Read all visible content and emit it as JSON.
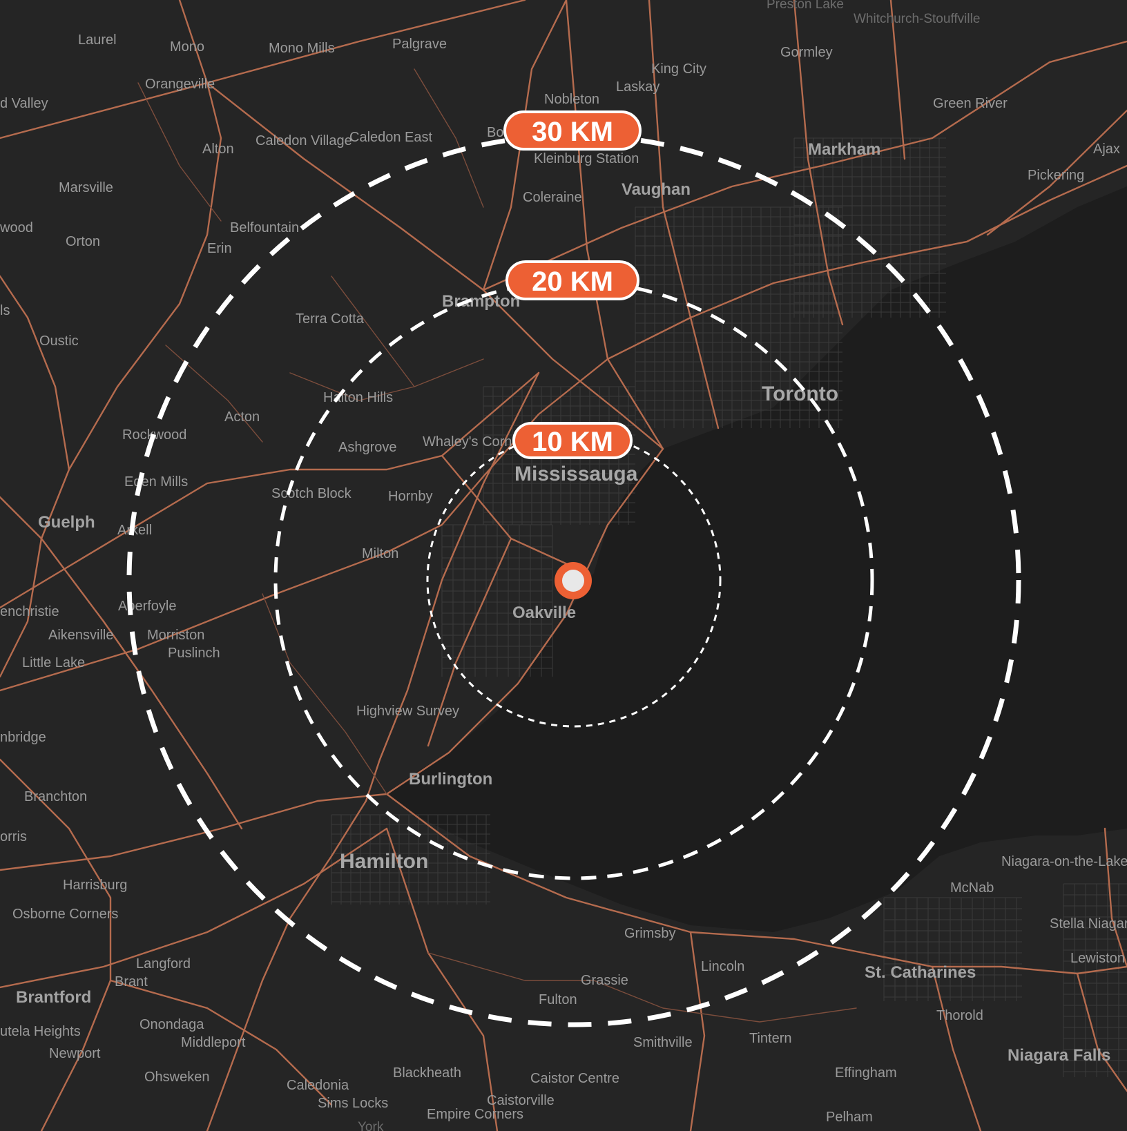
{
  "colors": {
    "background": "#252525",
    "water": "#1d1d1d",
    "road": "#b56b4e",
    "accent": "#ed6034",
    "ring": "#ffffff"
  },
  "center_marker": {
    "icon": "location-pin-icon",
    "label": "Oakville"
  },
  "radius_rings": [
    {
      "label": "10 KM",
      "radius_km": 10
    },
    {
      "label": "20 KM",
      "radius_km": 20
    },
    {
      "label": "30 KM",
      "radius_km": 30
    }
  ],
  "places": {
    "laurel": "Laurel",
    "mono": "Mono",
    "mono_mills": "Mono Mills",
    "palgrave": "Palgrave",
    "orangeville": "Orangeville",
    "grand_valley": "d Valley",
    "nobleton": "Nobleton",
    "king_city": "King City",
    "laskay": "Laskay",
    "gormley": "Gormley",
    "whitchurch": "Whitchurch-Stouffville",
    "preston_lake": "Preston Lake",
    "green_river": "Green River",
    "markham": "Markham",
    "ajax": "Ajax",
    "pickering": "Pickering",
    "alton": "Alton",
    "caledon_village": "Caledon Village",
    "caledon_east": "Caledon East",
    "bolton": "Bo",
    "kleinburg": "Kleinburg Station",
    "vaughan": "Vaughan",
    "coleraine": "Coleraine",
    "marsville": "Marsville",
    "orton": "Orton",
    "wood": "wood",
    "belfountain": "Belfountain",
    "erin": "Erin",
    "is": "ls",
    "brampton": "Brampton",
    "terra_cotta": "Terra Cotta",
    "oustic": "Oustic",
    "toronto": "Toronto",
    "halton_hills": "Halton Hills",
    "acton": "Acton",
    "rockwood": "Rockwood",
    "ashgrove": "Ashgrove",
    "whaleys": "Whaley's Corners",
    "mississauga": "Mississauga",
    "eden_mills": "Eden Mills",
    "scotch_block": "Scotch Block",
    "hornby": "Hornby",
    "guelph": "Guelph",
    "arkell": "Arkell",
    "milton": "Milton",
    "oakville": "Oakville",
    "glenchristie": "enchristie",
    "aberfoyle": "Aberfoyle",
    "aikensville": "Aikensville",
    "morriston": "Morriston",
    "puslinch": "Puslinch",
    "little_lake": "Little Lake",
    "highview": "Highview Survey",
    "cambridge": "nbridge",
    "burlington": "Burlington",
    "branchton": "Branchton",
    "orris": "orris",
    "hamilton": "Hamilton",
    "niagara_otl": "Niagara-on-the-Lake",
    "harrisburg": "Harrisburg",
    "mcnab": "McNab",
    "osborne": "Osborne Corners",
    "stella": "Stella Niagara",
    "grimsby": "Grimsby",
    "lewiston": "Lewiston",
    "langford": "Langford",
    "brant": "Brant",
    "lincoln": "Lincoln",
    "grassie": "Grassie",
    "st_catharines": "St. Catharines",
    "brantford": "Brantford",
    "fulton": "Fulton",
    "thorold": "Thorold",
    "onondaga": "Onondaga",
    "cayuga_heights": "utela Heights",
    "middleport": "Middleport",
    "smithville": "Smithville",
    "tintern": "Tintern",
    "newport": "Newport",
    "niagara_falls": "Niagara Falls",
    "ohsweken": "Ohsweken",
    "blackheath": "Blackheath",
    "caistor_centre": "Caistor Centre",
    "effingham": "Effingham",
    "caledonia": "Caledonia",
    "sims_locks": "Sims Locks",
    "empire_corners": "Empire Corners",
    "caistorville": "Caistorville",
    "york": "York",
    "pelham": "Pelham"
  }
}
